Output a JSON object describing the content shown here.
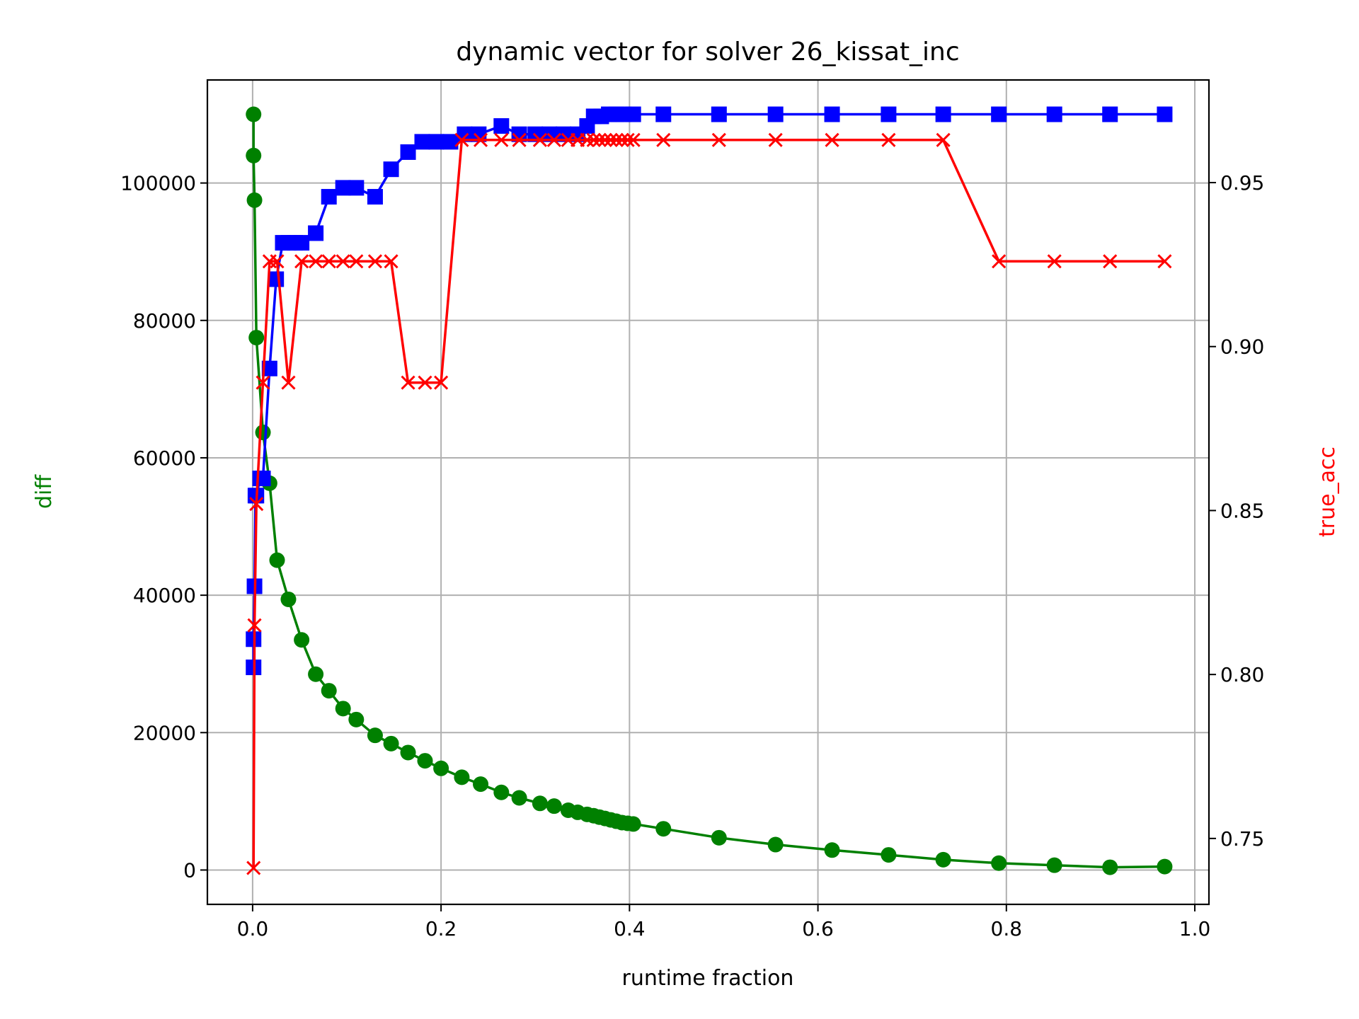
{
  "chart_data": {
    "type": "line",
    "title": "dynamic vector for solver 26_kissat_inc",
    "xlabel": "runtime fraction",
    "ylabel_left": "diff",
    "ylabel_right": "true_acc",
    "xlim": [
      -0.048,
      1.015
    ],
    "ylim_left": [
      -5000,
      115000
    ],
    "ylim_right": [
      0.7299,
      0.9813
    ],
    "x_ticks": [
      0.0,
      0.2,
      0.4,
      0.6,
      0.8,
      1.0
    ],
    "x_tick_labels": [
      "0.0",
      "0.2",
      "0.4",
      "0.6",
      "0.8",
      "1.0"
    ],
    "y_left_ticks": [
      0,
      20000,
      40000,
      60000,
      80000,
      100000
    ],
    "y_left_tick_labels": [
      "0",
      "20000",
      "40000",
      "60000",
      "80000",
      "100000"
    ],
    "y_right_ticks": [
      0.75,
      0.8,
      0.85,
      0.9,
      0.95
    ],
    "y_right_tick_labels": [
      "0.75",
      "0.80",
      "0.85",
      "0.90",
      "0.95"
    ],
    "grid": true,
    "colors": {
      "diff": "#008000",
      "blue": "#0000ff",
      "true_acc": "#ff0000",
      "grid": "#b0b0b0"
    },
    "series": [
      {
        "axis": "left",
        "color": "#008000",
        "marker": "circle",
        "x": [
          0.001,
          0.001,
          0.002,
          0.004,
          0.011,
          0.018,
          0.026,
          0.038,
          0.052,
          0.067,
          0.081,
          0.096,
          0.11,
          0.13,
          0.147,
          0.165,
          0.183,
          0.2,
          0.222,
          0.242,
          0.264,
          0.283,
          0.305,
          0.32,
          0.335,
          0.345,
          0.355,
          0.362,
          0.368,
          0.374,
          0.38,
          0.386,
          0.392,
          0.398,
          0.404,
          0.436,
          0.495,
          0.555,
          0.615,
          0.675,
          0.733,
          0.792,
          0.851,
          0.91,
          0.968
        ],
        "values": [
          110000,
          104000,
          97500,
          77500,
          63700,
          56300,
          45100,
          39400,
          33500,
          28500,
          26100,
          23500,
          21900,
          19600,
          18400,
          17100,
          15900,
          14800,
          13500,
          12500,
          11300,
          10500,
          9700,
          9300,
          8700,
          8400,
          8100,
          7900,
          7700,
          7500,
          7300,
          7100,
          6900,
          6800,
          6700,
          6000,
          4700,
          3700,
          2900,
          2200,
          1500,
          1000,
          700,
          400,
          500
        ]
      },
      {
        "axis": "left",
        "color": "#0000ff",
        "marker": "square",
        "x": [
          0.001,
          0.001,
          0.002,
          0.003,
          0.004,
          0.008,
          0.011,
          0.018,
          0.025,
          0.032,
          0.038,
          0.045,
          0.052,
          0.067,
          0.081,
          0.096,
          0.11,
          0.13,
          0.147,
          0.165,
          0.18,
          0.195,
          0.21,
          0.225,
          0.24,
          0.264,
          0.283,
          0.3,
          0.315,
          0.33,
          0.345,
          0.355,
          0.362,
          0.37,
          0.378,
          0.386,
          0.394,
          0.404,
          0.436,
          0.495,
          0.555,
          0.615,
          0.675,
          0.733,
          0.792,
          0.851,
          0.91,
          0.968
        ],
        "values": [
          29500,
          33600,
          41300,
          54500,
          54500,
          57000,
          57000,
          73000,
          86000,
          91300,
          91300,
          91300,
          91300,
          92700,
          98000,
          99300,
          99300,
          98000,
          102000,
          104500,
          106000,
          106000,
          106000,
          107100,
          107100,
          108300,
          107100,
          107100,
          107100,
          107100,
          107100,
          108300,
          109700,
          109700,
          110000,
          110000,
          110000,
          110000,
          110000,
          110000,
          110000,
          110000,
          110000,
          110000,
          110000,
          110000,
          110000,
          110000
        ]
      },
      {
        "axis": "right",
        "color": "#ff0000",
        "marker": "x",
        "x": [
          0.001,
          0.002,
          0.004,
          0.011,
          0.018,
          0.026,
          0.038,
          0.052,
          0.067,
          0.081,
          0.096,
          0.11,
          0.13,
          0.147,
          0.165,
          0.183,
          0.2,
          0.222,
          0.242,
          0.264,
          0.283,
          0.305,
          0.32,
          0.335,
          0.345,
          0.355,
          0.362,
          0.368,
          0.374,
          0.38,
          0.386,
          0.392,
          0.398,
          0.404,
          0.436,
          0.495,
          0.555,
          0.615,
          0.675,
          0.733,
          0.792,
          0.851,
          0.91,
          0.968
        ],
        "values": [
          0.741,
          0.815,
          0.852,
          0.889,
          0.926,
          0.926,
          0.889,
          0.926,
          0.926,
          0.926,
          0.926,
          0.926,
          0.926,
          0.926,
          0.889,
          0.889,
          0.889,
          0.963,
          0.963,
          0.963,
          0.963,
          0.963,
          0.963,
          0.963,
          0.963,
          0.963,
          0.963,
          0.963,
          0.963,
          0.963,
          0.963,
          0.963,
          0.963,
          0.963,
          0.963,
          0.963,
          0.963,
          0.963,
          0.963,
          0.963,
          0.926,
          0.926,
          0.926,
          0.926
        ]
      }
    ]
  }
}
